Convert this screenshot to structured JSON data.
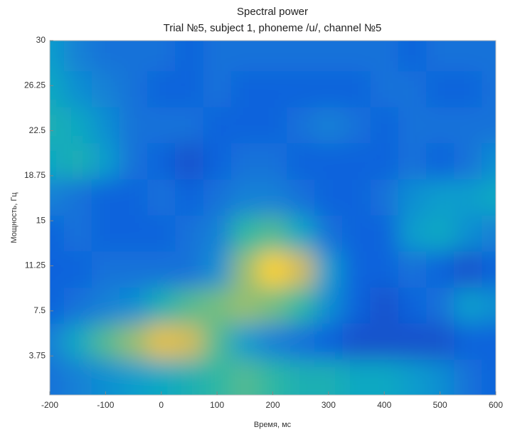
{
  "chart_data": {
    "type": "heatmap",
    "title": "Spectral power",
    "subtitle": "Trial №5, subject 1, phoneme /u/, channel №5",
    "xlabel": "Время, мс",
    "ylabel": "Мощность, Гц",
    "xlim": [
      -200,
      600
    ],
    "ylim": [
      0.5,
      30
    ],
    "xticks": [
      -200,
      -100,
      0,
      100,
      200,
      300,
      400,
      500,
      600
    ],
    "yticks": [
      3.75,
      7.5,
      11.25,
      15,
      18.75,
      22.5,
      26.25,
      30
    ],
    "x": [
      -200,
      -150,
      -100,
      -50,
      0,
      50,
      100,
      150,
      200,
      250,
      300,
      350,
      400,
      450,
      500,
      550,
      600
    ],
    "y": [
      2,
      5,
      8,
      11,
      14,
      17,
      20,
      23,
      26,
      29
    ],
    "zlim": [
      0,
      1
    ],
    "colormap": [
      "#352a87",
      "#0f5cdd",
      "#1481d6",
      "#06a4ca",
      "#2eb7a4",
      "#87bf77",
      "#d1bb59",
      "#fec832",
      "#f9fb0e"
    ],
    "z": [
      [
        0.2,
        0.25,
        0.3,
        0.35,
        0.4,
        0.45,
        0.5,
        0.55,
        0.5,
        0.45,
        0.45,
        0.4,
        0.4,
        0.35,
        0.3,
        0.2,
        0.15
      ],
      [
        0.25,
        0.4,
        0.55,
        0.65,
        0.8,
        0.75,
        0.55,
        0.35,
        0.25,
        0.2,
        0.15,
        0.1,
        0.1,
        0.1,
        0.1,
        0.15,
        0.15
      ],
      [
        0.15,
        0.2,
        0.25,
        0.3,
        0.45,
        0.55,
        0.6,
        0.65,
        0.6,
        0.5,
        0.3,
        0.15,
        0.1,
        0.15,
        0.2,
        0.35,
        0.3
      ],
      [
        0.15,
        0.15,
        0.2,
        0.2,
        0.2,
        0.2,
        0.3,
        0.65,
        0.9,
        0.75,
        0.35,
        0.15,
        0.15,
        0.2,
        0.15,
        0.1,
        0.15
      ],
      [
        0.15,
        0.2,
        0.15,
        0.15,
        0.15,
        0.2,
        0.25,
        0.5,
        0.55,
        0.4,
        0.2,
        0.15,
        0.15,
        0.35,
        0.4,
        0.3,
        0.25
      ],
      [
        0.25,
        0.2,
        0.15,
        0.15,
        0.2,
        0.15,
        0.2,
        0.25,
        0.25,
        0.2,
        0.15,
        0.15,
        0.2,
        0.3,
        0.35,
        0.35,
        0.4
      ],
      [
        0.4,
        0.45,
        0.35,
        0.2,
        0.15,
        0.1,
        0.15,
        0.2,
        0.2,
        0.15,
        0.15,
        0.15,
        0.15,
        0.2,
        0.15,
        0.2,
        0.3
      ],
      [
        0.45,
        0.4,
        0.3,
        0.2,
        0.2,
        0.2,
        0.15,
        0.15,
        0.15,
        0.2,
        0.25,
        0.2,
        0.15,
        0.2,
        0.2,
        0.2,
        0.2
      ],
      [
        0.4,
        0.3,
        0.25,
        0.2,
        0.15,
        0.15,
        0.2,
        0.15,
        0.15,
        0.15,
        0.15,
        0.15,
        0.2,
        0.2,
        0.15,
        0.15,
        0.2
      ],
      [
        0.35,
        0.25,
        0.2,
        0.2,
        0.2,
        0.15,
        0.2,
        0.2,
        0.2,
        0.2,
        0.2,
        0.2,
        0.2,
        0.15,
        0.2,
        0.2,
        0.2
      ]
    ]
  }
}
